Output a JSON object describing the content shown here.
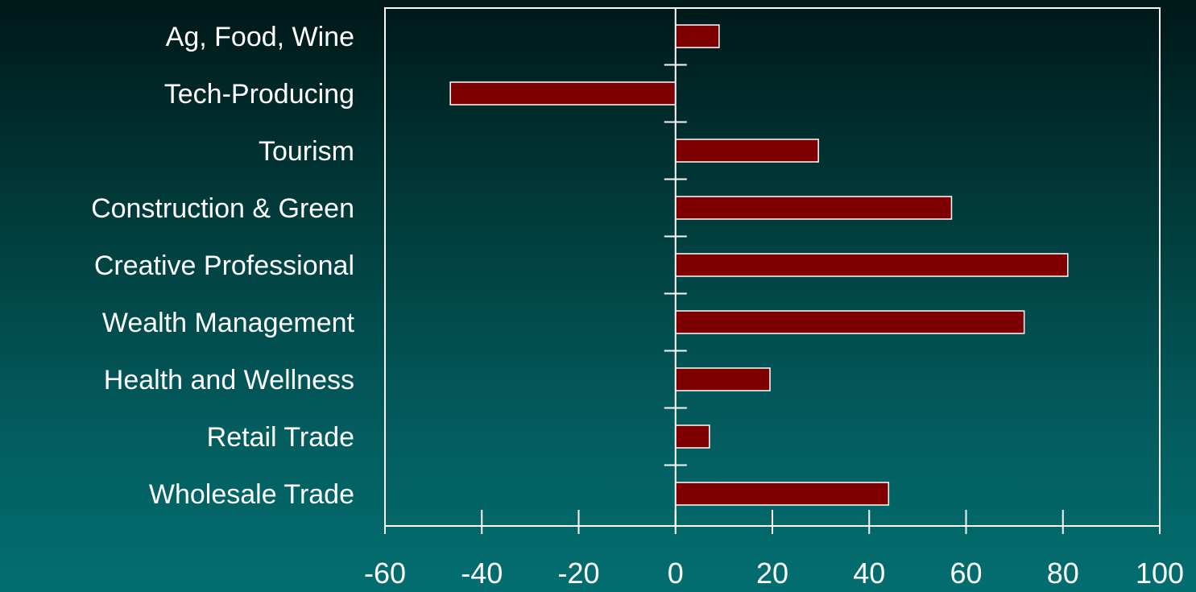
{
  "chart_data": {
    "type": "bar",
    "orientation": "horizontal",
    "categories": [
      "Ag, Food, Wine",
      "Tech-Producing",
      "Tourism",
      "Construction & Green",
      "Creative Professional",
      "Wealth Management",
      "Health and Wellness",
      "Retail Trade",
      "Wholesale Trade"
    ],
    "values": [
      9,
      -46.5,
      29.5,
      57,
      81,
      72,
      19.5,
      7,
      44
    ],
    "xlim": [
      -60,
      100
    ],
    "xticks": [
      "-60",
      "-40",
      "-20",
      "0",
      "20",
      "40",
      "60",
      "80",
      "100"
    ],
    "bar_color": "#7f0000",
    "bar_edge_color": "#ffffff",
    "grid": false,
    "legend": "none"
  }
}
